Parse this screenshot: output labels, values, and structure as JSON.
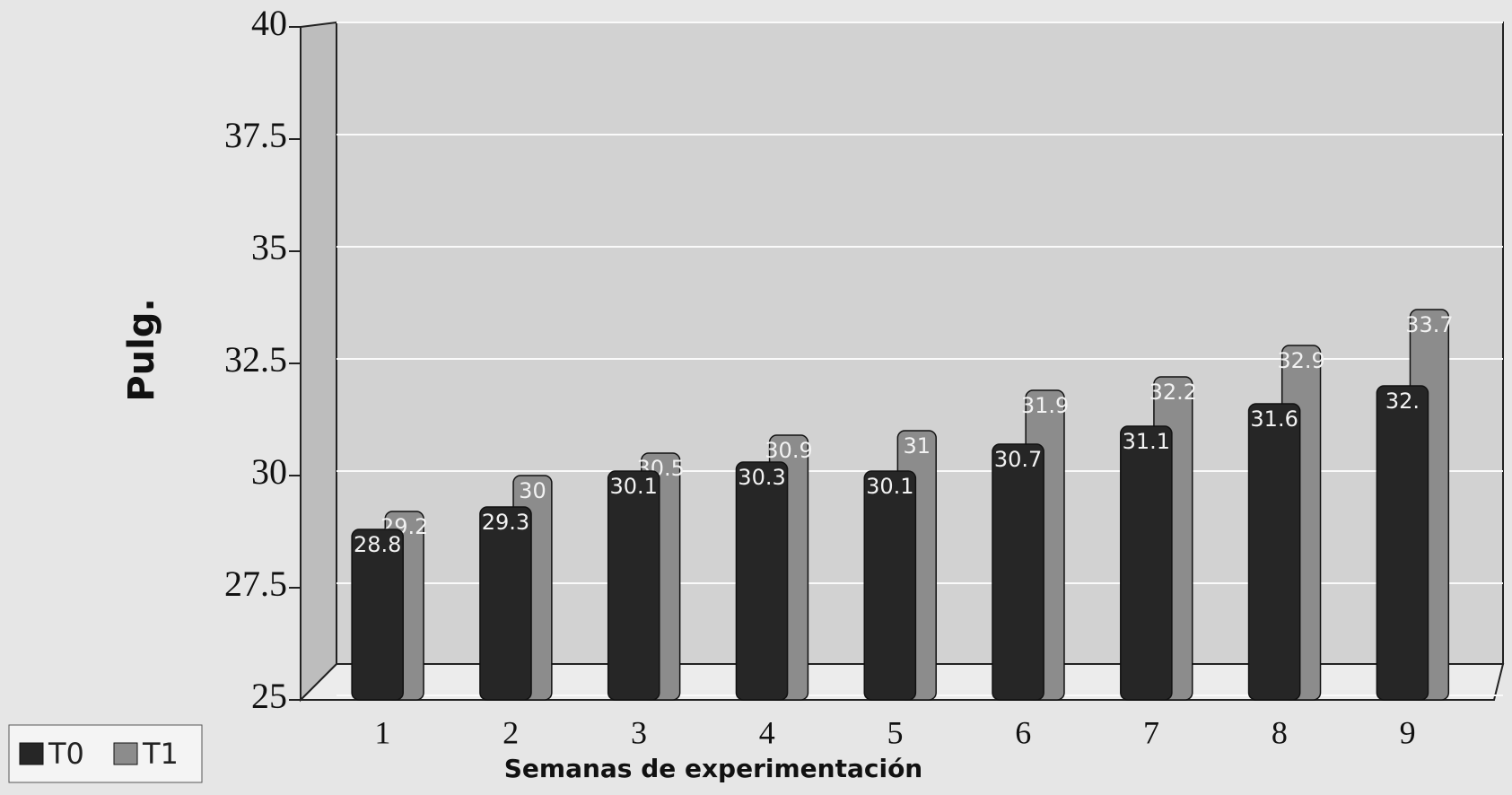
{
  "chart_data": {
    "type": "bar",
    "y_label": "Pulg.",
    "x_label": "Semanas de experimentación",
    "categories": [
      "1",
      "2",
      "3",
      "4",
      "5",
      "6",
      "7",
      "8",
      "9"
    ],
    "series": [
      {
        "name": "T0",
        "color": "#262626",
        "values": [
          28.8,
          29.3,
          30.1,
          30.3,
          30.1,
          30.7,
          31.1,
          31.6,
          32
        ],
        "value_labels": [
          "28.8",
          "29.3",
          "30.1",
          "30.3",
          "30.1",
          "30.7",
          "31.1",
          "31.6",
          "32."
        ]
      },
      {
        "name": "T1",
        "color": "#8c8c8c",
        "values": [
          29.2,
          30,
          30.5,
          30.9,
          31,
          31.9,
          32.2,
          32.9,
          33.7
        ]
      }
    ],
    "ylim": [
      25,
      40
    ],
    "yticks": [
      25,
      27.5,
      30,
      32.5,
      35,
      37.5,
      40
    ],
    "grid": true,
    "legend": "bottom-left"
  }
}
